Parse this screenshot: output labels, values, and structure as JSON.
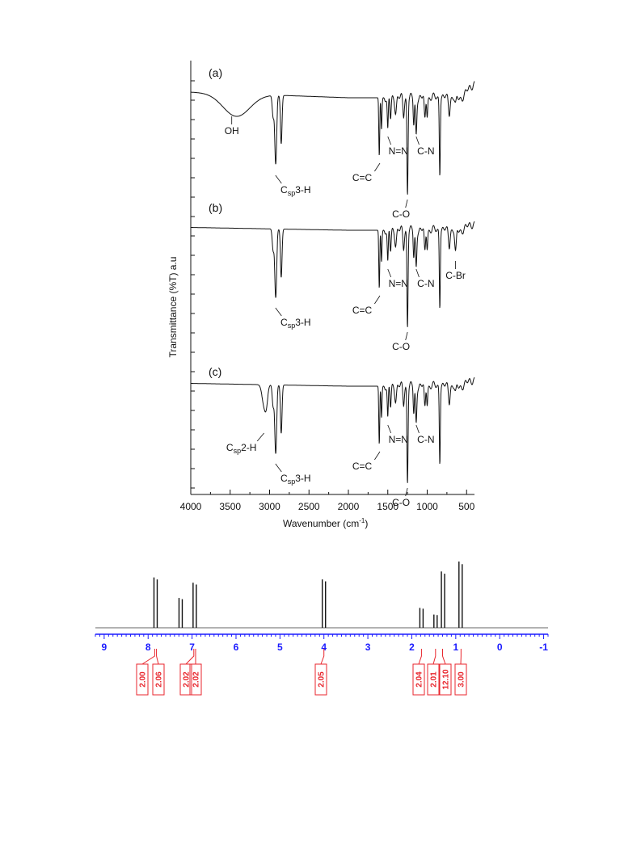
{
  "colors": {
    "ink": "#111111",
    "nmr_axis": "#1a1aff",
    "nmr_integral": "#e8262d",
    "nmr_baseline": "#666666"
  },
  "chart_data": [
    {
      "type": "line",
      "xlabel": "Wavenumber (cm",
      "xlabel_sup": "-1",
      "xlabel_end": ")",
      "ylabel": "Transmittance (%T) a.u",
      "xlim": [
        4000,
        400
      ],
      "x_reversed": true,
      "x_ticks": [
        "4000",
        "3500",
        "3000",
        "2500",
        "2000",
        "1500",
        "1000",
        "500"
      ],
      "grid": false,
      "series": [
        {
          "name": "(a)",
          "annotations": [
            {
              "text": "OH",
              "x": 3480
            },
            {
              "text": "C",
              "sub": "sp",
              "tail": "3-H",
              "x": 2925
            },
            {
              "text": "C=C",
              "x": 1600
            },
            {
              "text": "N=N",
              "x": 1500
            },
            {
              "text": "C-O",
              "x": 1250
            },
            {
              "text": "C-N",
              "x": 1140
            }
          ]
        },
        {
          "name": "(b)",
          "annotations": [
            {
              "text": "C",
              "sub": "sp",
              "tail": "3-H",
              "x": 2925
            },
            {
              "text": "C=C",
              "x": 1600
            },
            {
              "text": "N=N",
              "x": 1500
            },
            {
              "text": "C-O",
              "x": 1250
            },
            {
              "text": "C-N",
              "x": 1140
            },
            {
              "text": "C-Br",
              "x": 640
            }
          ]
        },
        {
          "name": "(c)",
          "annotations": [
            {
              "text": "C",
              "sub": "sp",
              "tail": "2-H",
              "x": 3070
            },
            {
              "text": "C",
              "sub": "sp",
              "tail": "3-H",
              "x": 2925
            },
            {
              "text": "C=C",
              "x": 1600
            },
            {
              "text": "N=N",
              "x": 1500
            },
            {
              "text": "C-O",
              "x": 1250
            },
            {
              "text": "C-N",
              "x": 1140
            }
          ]
        }
      ]
    },
    {
      "type": "line",
      "xlim": [
        9.2,
        -1.1
      ],
      "x_reversed": true,
      "x_ticks": [
        "9",
        "8",
        "7",
        "6",
        "5",
        "4",
        "3",
        "2",
        "1",
        "0",
        "-1"
      ],
      "peaks": [
        {
          "ppm": 7.83,
          "height": 0.76
        },
        {
          "ppm": 7.26,
          "height": 0.45
        },
        {
          "ppm": 6.94,
          "height": 0.68
        },
        {
          "ppm": 4.0,
          "height": 0.73
        },
        {
          "ppm": 1.78,
          "height": 0.3
        },
        {
          "ppm": 1.46,
          "height": 0.2
        },
        {
          "ppm": 1.29,
          "height": 0.85
        },
        {
          "ppm": 0.89,
          "height": 1.0
        }
      ],
      "integrals": [
        {
          "ppm": 7.85,
          "value": "2.00"
        },
        {
          "ppm": 7.81,
          "value": "2.06"
        },
        {
          "ppm": 6.96,
          "value": "2.02"
        },
        {
          "ppm": 6.92,
          "value": "2.02"
        },
        {
          "ppm": 4.0,
          "value": "2.05"
        },
        {
          "ppm": 1.78,
          "value": "2.04"
        },
        {
          "ppm": 1.46,
          "value": "2.01"
        },
        {
          "ppm": 1.3,
          "value": "12.10"
        },
        {
          "ppm": 0.88,
          "value": "3.00"
        }
      ]
    }
  ]
}
